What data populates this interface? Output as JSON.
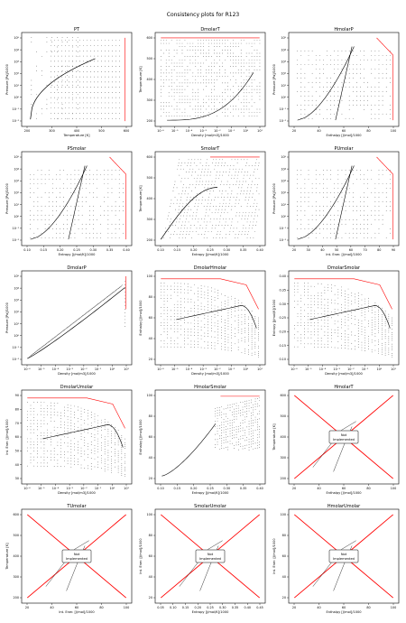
{
  "suptitle": "Consistency plots for R123",
  "not_implemented_text": [
    "Not",
    "Implemented"
  ],
  "colors": {
    "curve": "#000000",
    "highlight": "#ff0000",
    "grid_points": "#222222",
    "frame": "#000000"
  },
  "chart_data": [
    {
      "type": "scatter",
      "title": "PT",
      "xlabel": "Temperature [K]",
      "ylabel": "Pressure [Pa]/1000",
      "xticks": [
        "200",
        "300",
        "400",
        "500",
        "600"
      ],
      "yticks": [
        "10⁻²",
        "10⁻¹",
        "10⁰",
        "10¹",
        "10²",
        "10³",
        "10⁴",
        "10⁵"
      ],
      "kind": "pt",
      "ylog": true
    },
    {
      "type": "scatter",
      "title": "DmolarT",
      "xlabel": "Density [mol/m3]/1000",
      "ylabel": "Temperature [K]",
      "xticks": [
        "10⁻⁶",
        "10⁻⁵",
        "10⁻⁴",
        "10⁻³",
        "10⁻²",
        "10⁻¹",
        "10⁰",
        "10¹"
      ],
      "yticks": [
        "200",
        "300",
        "400",
        "500",
        "600"
      ],
      "kind": "dmolarT"
    },
    {
      "type": "scatter",
      "title": "HmolarP",
      "xlabel": "Enthalpy [J/mol]/1000",
      "ylabel": "Pressure [Pa]/1000",
      "xticks": [
        "20",
        "40",
        "60",
        "80",
        "100"
      ],
      "yticks": [
        "10⁻²",
        "10⁻¹",
        "10⁰",
        "10¹",
        "10²",
        "10³",
        "10⁴",
        "10⁵"
      ],
      "kind": "dome",
      "ylog": true
    },
    {
      "type": "scatter",
      "title": "PSmolar",
      "xlabel": "Entropy [J/mol/K]/1000",
      "ylabel": "Pressure [Pa]/1000",
      "xticks": [
        "0.10",
        "0.15",
        "0.20",
        "0.25",
        "0.30",
        "0.35",
        "0.40"
      ],
      "yticks": [
        "10⁻²",
        "10⁻¹",
        "10⁰",
        "10¹",
        "10²",
        "10³",
        "10⁴",
        "10⁵"
      ],
      "kind": "domeS",
      "ylog": true
    },
    {
      "type": "scatter",
      "title": "SmolarT",
      "xlabel": "Entropy [J/mol/K]/1000",
      "ylabel": "Temperature [K]",
      "xticks": [
        "0.10",
        "0.15",
        "0.20",
        "0.25",
        "0.30",
        "0.35",
        "0.40"
      ],
      "yticks": [
        "200",
        "300",
        "400",
        "500",
        "600"
      ],
      "kind": "ts"
    },
    {
      "type": "scatter",
      "title": "PUmolar",
      "xlabel": "Int. Ener. [J/mol]/1000",
      "ylabel": "Pressure [Pa]/1000",
      "xticks": [
        "20",
        "30",
        "40",
        "50",
        "60",
        "70",
        "80",
        "90"
      ],
      "yticks": [
        "10⁻²",
        "10⁻¹",
        "10⁰",
        "10¹",
        "10²",
        "10³",
        "10⁴",
        "10⁵"
      ],
      "kind": "dome",
      "ylog": true
    },
    {
      "type": "scatter",
      "title": "DmolarP",
      "xlabel": "Density [mol/m3]/1000",
      "ylabel": "Pressure [Pa]/1000",
      "xticks": [
        "10⁻⁶",
        "10⁻⁵",
        "10⁻⁴",
        "10⁻³",
        "10⁻²",
        "10⁻¹",
        "10⁰",
        "10¹"
      ],
      "yticks": [
        "10⁻²",
        "10⁻¹",
        "10⁰",
        "10¹",
        "10²",
        "10³",
        "10⁴",
        "10⁵"
      ],
      "kind": "dp",
      "ylog": true
    },
    {
      "type": "scatter",
      "title": "DmolarHmolar",
      "xlabel": "Density [mol/m3]/1000",
      "ylabel": "Enthalpy [J/mol]/1000",
      "xticks": [
        "10⁻⁶",
        "10⁻⁵",
        "10⁻⁴",
        "10⁻³",
        "10⁻²",
        "10⁻¹",
        "10⁰",
        "10¹"
      ],
      "yticks": [
        "20",
        "40",
        "60",
        "80",
        "100"
      ],
      "kind": "dh"
    },
    {
      "type": "scatter",
      "title": "DmolarSmolar",
      "xlabel": "Density [mol/m3]/1000",
      "ylabel": "Entropy [J/mol/K]/1000",
      "xticks": [
        "10⁻⁶",
        "10⁻⁵",
        "10⁻⁴",
        "10⁻³",
        "10⁻²",
        "10⁻¹",
        "10⁰",
        "10¹"
      ],
      "yticks": [
        "0.10",
        "0.15",
        "0.20",
        "0.25",
        "0.30",
        "0.35",
        "0.40"
      ],
      "kind": "dh"
    },
    {
      "type": "scatter",
      "title": "DmolarUmolar",
      "xlabel": "Density [mol/m3]/1000",
      "ylabel": "Int. Ener. [J/mol]/1000",
      "xticks": [
        "10⁻⁶",
        "10⁻⁵",
        "10⁻⁴",
        "10⁻³",
        "10⁻²",
        "10⁻¹",
        "10⁰",
        "10¹"
      ],
      "yticks": [
        "30",
        "40",
        "50",
        "60",
        "70",
        "80",
        "90"
      ],
      "kind": "dh"
    },
    {
      "type": "scatter",
      "title": "HmolarSmolar",
      "xlabel": "Entropy [J/mol/K]/1000",
      "ylabel": "Enthalpy [J/mol]/1000",
      "xticks": [
        "0.10",
        "0.15",
        "0.20",
        "0.25",
        "0.30",
        "0.35",
        "0.40"
      ],
      "yticks": [
        "20",
        "40",
        "60",
        "80",
        "100"
      ],
      "kind": "hs"
    },
    {
      "type": "scatter",
      "title": "HmolarT",
      "xlabel": "Enthalpy [J/mol]/1000",
      "ylabel": "Temperature [K]",
      "xticks": [
        "20",
        "40",
        "60",
        "80",
        "100"
      ],
      "yticks": [
        "200",
        "300",
        "400",
        "500",
        "600"
      ],
      "kind": "ni",
      "not_implemented": true
    },
    {
      "type": "scatter",
      "title": "TUmolar",
      "xlabel": "Int. Ener. [J/mol]/1000",
      "ylabel": "Temperature [K]",
      "xticks": [
        "20",
        "40",
        "60",
        "80",
        "100"
      ],
      "yticks": [
        "200",
        "300",
        "400",
        "500",
        "600"
      ],
      "kind": "ni",
      "not_implemented": true
    },
    {
      "type": "scatter",
      "title": "SmolarUmolar",
      "xlabel": "Entropy [J/mol/K]/1000",
      "ylabel": "Int. Ener. [J/mol]/1000",
      "xticks": [
        "0.05",
        "0.10",
        "0.15",
        "0.20",
        "0.25",
        "0.30",
        "0.35",
        "0.40",
        "0.45"
      ],
      "yticks": [
        "20",
        "40",
        "60",
        "80",
        "100"
      ],
      "kind": "ni",
      "not_implemented": true
    },
    {
      "type": "scatter",
      "title": "HmolarUmolar",
      "xlabel": "Enthalpy [J/mol]/1000",
      "ylabel": "Int. Ener. [J/mol]/1000",
      "xticks": [
        "20",
        "40",
        "60",
        "80",
        "100"
      ],
      "yticks": [
        "20",
        "40",
        "60",
        "80",
        "100"
      ],
      "kind": "ni",
      "not_implemented": true
    }
  ]
}
